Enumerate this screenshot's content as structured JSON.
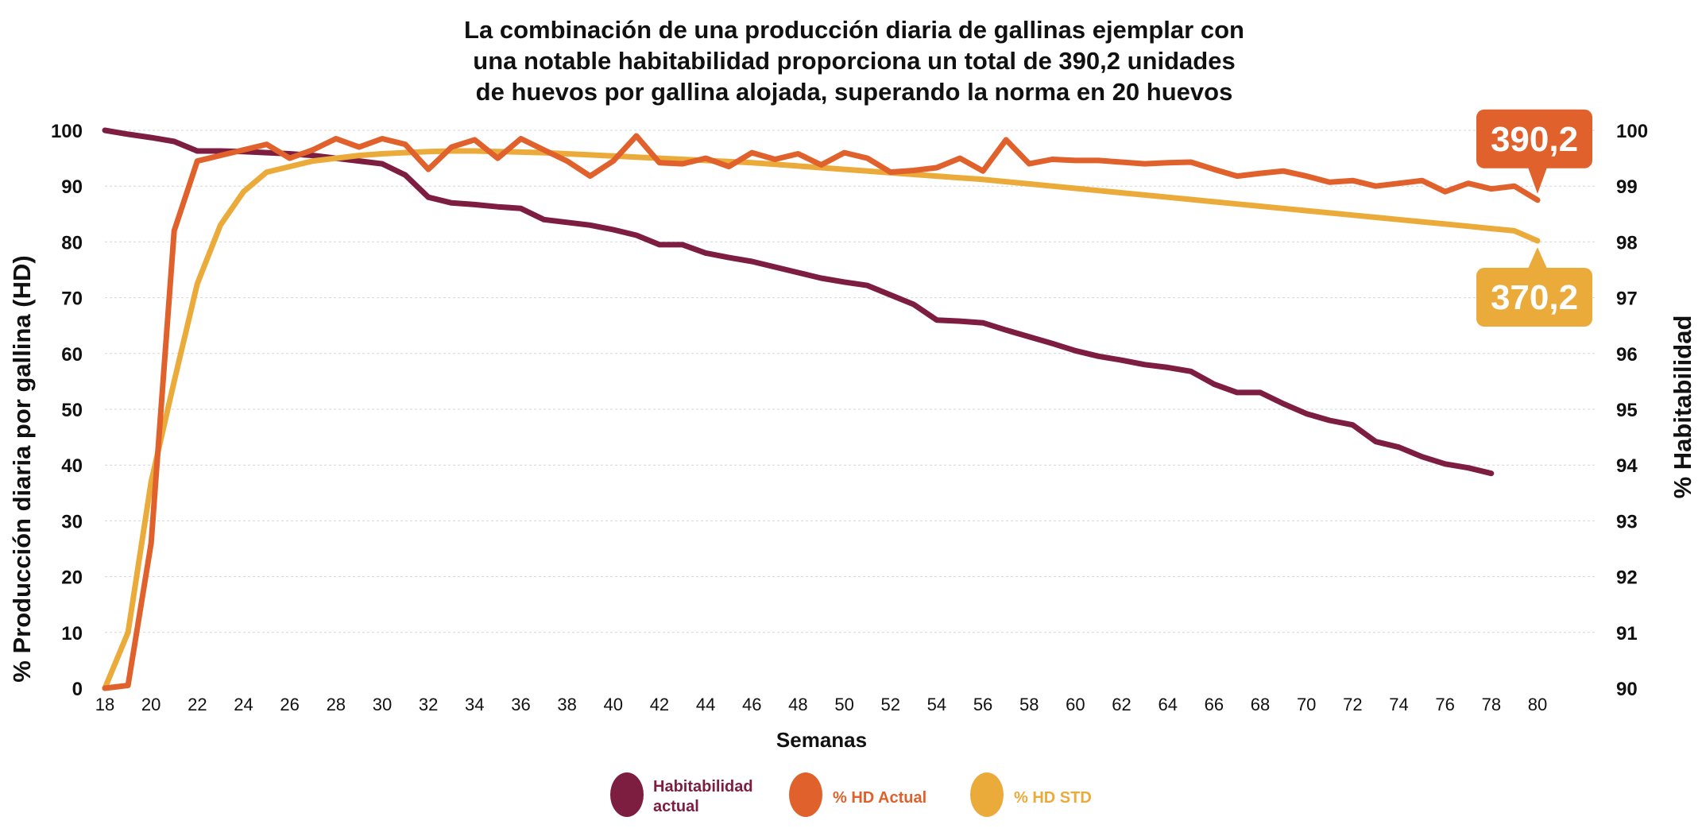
{
  "colors": {
    "habitabilidad": "#7d1d3f",
    "hd_actual": "#e0612c",
    "hd_std": "#ebab3b"
  },
  "chart_data": {
    "type": "line",
    "title_lines": [
      "La combinación de una producción diaria de gallinas ejemplar con",
      "una notable habitabilidad proporciona un total de 390,2 unidades",
      "de huevos por gallina alojada, superando la norma en 20 huevos"
    ],
    "xlabel": "Semanas",
    "ylabel": "% Producción diaria por gallina (HD)",
    "y2label": "% Habitabilidad",
    "xlim": [
      18,
      80
    ],
    "ylim": [
      0,
      100
    ],
    "y2lim": [
      90,
      100
    ],
    "x_ticks": [
      "18",
      "20",
      "22",
      "24",
      "26",
      "28",
      "30",
      "32",
      "34",
      "36",
      "38",
      "40",
      "42",
      "44",
      "46",
      "48",
      "50",
      "52",
      "54",
      "56",
      "58",
      "60",
      "62",
      "64",
      "66",
      "68",
      "70",
      "72",
      "74",
      "76",
      "78",
      "80"
    ],
    "y_ticks": [
      "0",
      "10",
      "20",
      "30",
      "40",
      "50",
      "60",
      "70",
      "80",
      "90",
      "100"
    ],
    "y2_ticks": [
      "90",
      "91",
      "92",
      "93",
      "94",
      "95",
      "96",
      "97",
      "98",
      "99",
      "100"
    ],
    "grid": "horizontal dashed",
    "legend_position": "bottom-center",
    "series": [
      {
        "name": "Habitabilidad actual",
        "legend_lines": [
          "Habitabilidad",
          "actual"
        ],
        "axis": "right",
        "color_key": "habitabilidad",
        "points": [
          [
            18,
            100
          ],
          [
            19,
            99.93
          ],
          [
            20,
            99.87
          ],
          [
            21,
            99.8
          ],
          [
            22,
            99.63
          ],
          [
            23,
            99.63
          ],
          [
            24,
            99.62
          ],
          [
            25,
            99.6
          ],
          [
            26,
            99.58
          ],
          [
            27,
            99.55
          ],
          [
            28,
            99.5
          ],
          [
            29,
            99.45
          ],
          [
            30,
            99.4
          ],
          [
            31,
            99.2
          ],
          [
            32,
            98.8
          ],
          [
            33,
            98.7
          ],
          [
            34,
            98.67
          ],
          [
            35,
            98.63
          ],
          [
            36,
            98.6
          ],
          [
            37,
            98.4
          ],
          [
            38,
            98.35
          ],
          [
            39,
            98.3
          ],
          [
            40,
            98.22
          ],
          [
            41,
            98.12
          ],
          [
            42,
            97.95
          ],
          [
            43,
            97.95
          ],
          [
            44,
            97.8
          ],
          [
            45,
            97.72
          ],
          [
            46,
            97.65
          ],
          [
            47,
            97.55
          ],
          [
            48,
            97.45
          ],
          [
            49,
            97.35
          ],
          [
            50,
            97.28
          ],
          [
            51,
            97.22
          ],
          [
            52,
            97.05
          ],
          [
            53,
            96.88
          ],
          [
            54,
            96.6
          ],
          [
            55,
            96.58
          ],
          [
            56,
            96.55
          ],
          [
            57,
            96.42
          ],
          [
            58,
            96.3
          ],
          [
            59,
            96.18
          ],
          [
            60,
            96.05
          ],
          [
            61,
            95.95
          ],
          [
            62,
            95.88
          ],
          [
            63,
            95.8
          ],
          [
            64,
            95.75
          ],
          [
            65,
            95.68
          ],
          [
            66,
            95.45
          ],
          [
            67,
            95.3
          ],
          [
            68,
            95.3
          ],
          [
            69,
            95.1
          ],
          [
            70,
            94.92
          ],
          [
            71,
            94.8
          ],
          [
            72,
            94.72
          ],
          [
            73,
            94.42
          ],
          [
            74,
            94.32
          ],
          [
            75,
            94.15
          ],
          [
            76,
            94.02
          ],
          [
            77,
            93.95
          ],
          [
            78,
            93.85
          ]
        ]
      },
      {
        "name": "% HD Actual",
        "axis": "left",
        "color_key": "hd_actual",
        "points": [
          [
            18,
            0
          ],
          [
            19,
            0.5
          ],
          [
            20,
            26
          ],
          [
            21,
            82
          ],
          [
            22,
            94.5
          ],
          [
            23,
            95.5
          ],
          [
            24,
            96.5
          ],
          [
            25,
            97.5
          ],
          [
            26,
            95
          ],
          [
            27,
            96.5
          ],
          [
            28,
            98.5
          ],
          [
            29,
            97
          ],
          [
            30,
            98.5
          ],
          [
            31,
            97.5
          ],
          [
            32,
            93
          ],
          [
            33,
            97
          ],
          [
            34,
            98.3
          ],
          [
            35,
            95
          ],
          [
            36,
            98.5
          ],
          [
            37,
            96.5
          ],
          [
            38,
            94.5
          ],
          [
            39,
            91.8
          ],
          [
            40,
            94.5
          ],
          [
            41,
            99
          ],
          [
            42,
            94.2
          ],
          [
            43,
            94
          ],
          [
            44,
            95
          ],
          [
            45,
            93.5
          ],
          [
            46,
            96
          ],
          [
            47,
            94.8
          ],
          [
            48,
            95.8
          ],
          [
            49,
            93.8
          ],
          [
            50,
            96
          ],
          [
            51,
            95
          ],
          [
            52,
            92.5
          ],
          [
            53,
            92.8
          ],
          [
            54,
            93.3
          ],
          [
            55,
            95
          ],
          [
            56,
            92.7
          ],
          [
            57,
            98.3
          ],
          [
            58,
            94
          ],
          [
            59,
            94.8
          ],
          [
            60,
            94.6
          ],
          [
            61,
            94.6
          ],
          [
            62,
            94.3
          ],
          [
            63,
            94
          ],
          [
            64,
            94.2
          ],
          [
            65,
            94.3
          ],
          [
            66,
            93
          ],
          [
            67,
            91.8
          ],
          [
            68,
            92.3
          ],
          [
            69,
            92.7
          ],
          [
            70,
            91.8
          ],
          [
            71,
            90.7
          ],
          [
            72,
            91
          ],
          [
            73,
            90
          ],
          [
            74,
            90.5
          ],
          [
            75,
            91
          ],
          [
            76,
            89
          ],
          [
            77,
            90.5
          ],
          [
            78,
            89.5
          ],
          [
            79,
            90
          ],
          [
            80,
            87.5
          ]
        ]
      },
      {
        "name": "% HD STD",
        "axis": "left",
        "color_key": "hd_std",
        "points": [
          [
            18,
            0
          ],
          [
            19,
            10
          ],
          [
            20,
            37
          ],
          [
            21,
            55
          ],
          [
            22,
            72.5
          ],
          [
            23,
            83
          ],
          [
            24,
            89
          ],
          [
            25,
            92.5
          ],
          [
            26,
            93.5
          ],
          [
            27,
            94.5
          ],
          [
            28,
            95
          ],
          [
            29,
            95.5
          ],
          [
            30,
            95.8
          ],
          [
            31,
            96
          ],
          [
            32,
            96.2
          ],
          [
            33,
            96.3
          ],
          [
            34,
            96.3
          ],
          [
            35,
            96.2
          ],
          [
            36,
            96.1
          ],
          [
            37,
            96
          ],
          [
            38,
            95.8
          ],
          [
            39,
            95.6
          ],
          [
            40,
            95.4
          ],
          [
            41,
            95.2
          ],
          [
            42,
            95
          ],
          [
            43,
            94.8
          ],
          [
            44,
            94.6
          ],
          [
            45,
            94.4
          ],
          [
            46,
            94.2
          ],
          [
            47,
            93.9
          ],
          [
            48,
            93.6
          ],
          [
            49,
            93.3
          ],
          [
            50,
            93
          ],
          [
            51,
            92.7
          ],
          [
            52,
            92.4
          ],
          [
            53,
            92.1
          ],
          [
            54,
            91.8
          ],
          [
            55,
            91.5
          ],
          [
            56,
            91.2
          ],
          [
            57,
            90.8
          ],
          [
            58,
            90.4
          ],
          [
            59,
            90
          ],
          [
            60,
            89.6
          ],
          [
            61,
            89.2
          ],
          [
            62,
            88.8
          ],
          [
            63,
            88.4
          ],
          [
            64,
            88
          ],
          [
            65,
            87.6
          ],
          [
            66,
            87.2
          ],
          [
            67,
            86.8
          ],
          [
            68,
            86.4
          ],
          [
            69,
            86
          ],
          [
            70,
            85.6
          ],
          [
            71,
            85.2
          ],
          [
            72,
            84.8
          ],
          [
            73,
            84.4
          ],
          [
            74,
            84
          ],
          [
            75,
            83.6
          ],
          [
            76,
            83.2
          ],
          [
            77,
            82.8
          ],
          [
            78,
            82.4
          ],
          [
            79,
            82
          ],
          [
            80,
            80.2
          ]
        ]
      }
    ],
    "annotations": [
      {
        "text": "390,2",
        "series": "% HD Actual",
        "color_key": "hd_actual",
        "anchor": "above-end"
      },
      {
        "text": "370,2",
        "series": "% HD STD",
        "color_key": "hd_std",
        "anchor": "below-end"
      }
    ]
  }
}
